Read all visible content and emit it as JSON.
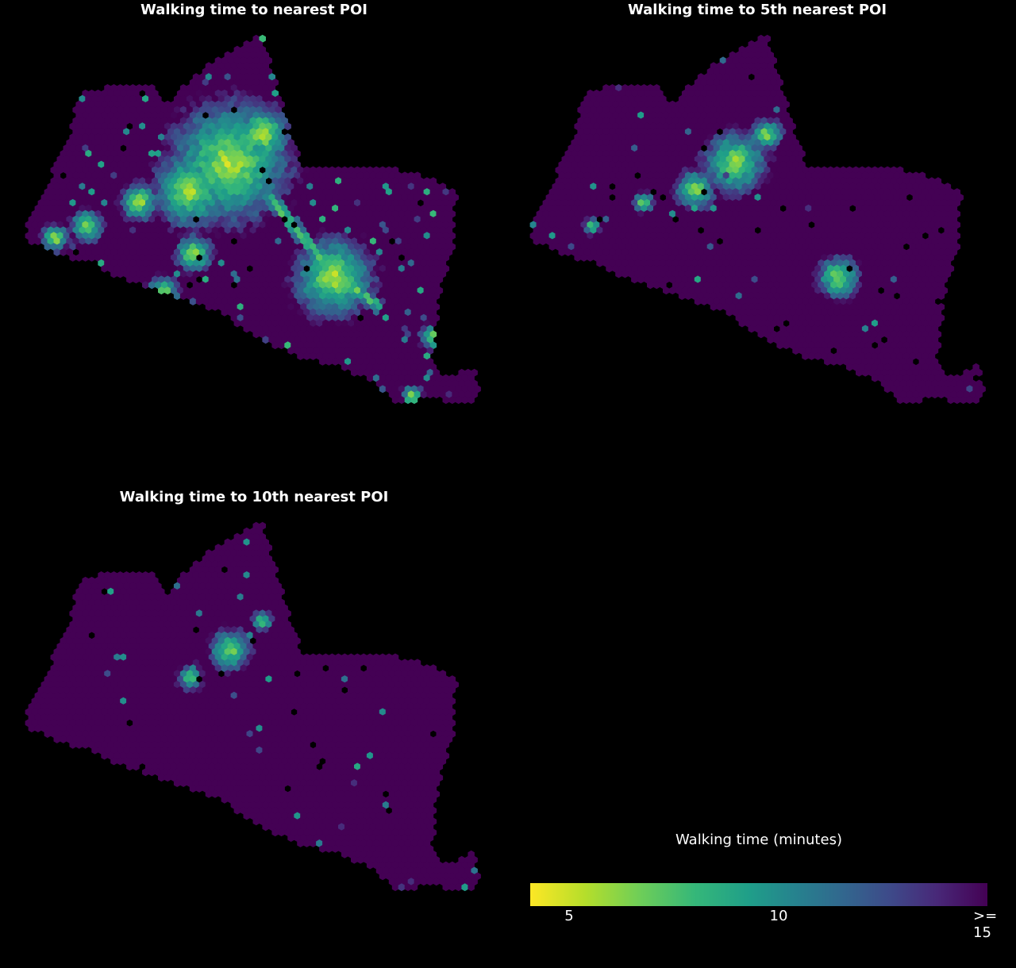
{
  "panels": [
    {
      "title": "Walking time to nearest POI",
      "level": 1
    },
    {
      "title": "Walking time to 5th nearest POI",
      "level": 5
    },
    {
      "title": "Walking time to 10th nearest POI",
      "level": 10
    }
  ],
  "colorbar": {
    "title": "Walking time (minutes)",
    "ticks": [
      {
        "label": "5",
        "value": 5
      },
      {
        "label": "10",
        "value": 10
      },
      {
        "label": ">= 15",
        "value": 15
      }
    ],
    "range": [
      4,
      15
    ],
    "colormap": "viridis_r",
    "colors": [
      "#fde725",
      "#6ece58",
      "#1f9e89",
      "#31688e",
      "#482878",
      "#440154"
    ]
  },
  "chart_data": {
    "type": "heatmap",
    "title": "",
    "value_label": "Walking time (minutes)",
    "vmin": 4,
    "vmax": 15,
    "series": [
      {
        "name": "Walking time to nearest POI",
        "min_value": 4,
        "max_value": 15
      },
      {
        "name": "Walking time to 5th nearest POI",
        "min_value": 4,
        "max_value": 15
      },
      {
        "name": "Walking time to 10th nearest POI",
        "min_value": 4.5,
        "max_value": 15
      }
    ]
  }
}
